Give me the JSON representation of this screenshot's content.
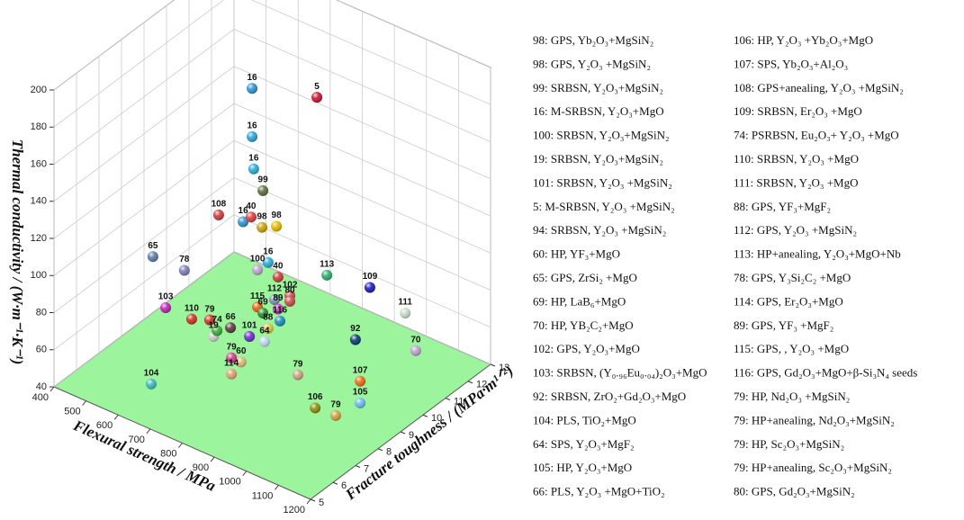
{
  "chart_data": {
    "type": "scatter3d",
    "xlabel": "Flexural strength / MPa",
    "ylabel": "Fracture toughness / (MPa·m¹ᐟ²)",
    "zlabel": "Thermal conductivity / (W·m⁻¹·K⁻¹)",
    "xlim": [
      400,
      1200
    ],
    "xticks": [
      400,
      500,
      600,
      700,
      800,
      900,
      1000,
      1100,
      1200
    ],
    "ylim": [
      5,
      13
    ],
    "yticks": [
      5,
      6,
      7,
      8,
      9,
      10,
      11,
      12,
      13
    ],
    "zlim": [
      40,
      200
    ],
    "zticks": [
      40,
      60,
      80,
      100,
      120,
      140,
      160,
      180,
      200
    ],
    "grid": true,
    "floor_color": "#9cf59c",
    "points": {
      "labels": [
        "16",
        "5",
        "16",
        "16",
        "99",
        "108",
        "40",
        "16",
        "98",
        "98",
        "65",
        "78",
        "100",
        "16",
        "40",
        "113",
        "109",
        "112",
        "102",
        "80",
        "115",
        "69",
        "89",
        "103",
        "110",
        "79",
        "66",
        "74",
        "116",
        "19",
        "101",
        "88",
        "64",
        "79",
        "60",
        "114",
        "92",
        "111",
        "70",
        "104",
        "79",
        "107",
        "106",
        "79",
        "105"
      ],
      "x": [
        737,
        883,
        737,
        742,
        827,
        745,
        790,
        709,
        824,
        869,
        540,
        638,
        810,
        787,
        874,
        858,
        936,
        863,
        883,
        883,
        810,
        827,
        846,
        636,
        717,
        745,
        782,
        768,
        852,
        757,
        813,
        843,
        832,
        785,
        815,
        813,
        947,
        990,
        1051,
        647,
        936,
        1046,
        1018,
        1054,
        1074
      ],
      "y": [
        9,
        9.8,
        9,
        9,
        8.2,
        7.4,
        8.2,
        9,
        8.2,
        8.2,
        7.4,
        7.4,
        8.2,
        9,
        8.2,
        10.6,
        11.4,
        8.2,
        8.6,
        8.6,
        8.2,
        8.2,
        8.6,
        6.6,
        6.6,
        7,
        7.4,
        7,
        8.6,
        7,
        7.8,
        8.2,
        8.2,
        7.4,
        7.4,
        7,
        10.6,
        12.2,
        11.8,
        5.8,
        8.2,
        9.4,
        7.8,
        8.2,
        9
      ],
      "z": [
        190,
        189,
        164,
        147,
        149,
        137,
        132,
        116,
        129,
        133,
        99,
        99,
        105,
        100,
        106,
        84,
        76,
        93,
        93,
        90,
        85,
        83,
        83,
        86,
        86,
        84,
        79,
        80,
        77,
        76,
        73,
        76,
        68,
        63,
        63,
        60,
        56,
        59,
        47,
        53,
        58,
        52,
        50,
        45,
        46
      ],
      "colors": [
        "#2b8fd1",
        "#c8102e",
        "#2b9fd6",
        "#2aa8d8",
        "#5a6e3a",
        "#c83a3a",
        "#d83a3a",
        "#2a90c8",
        "#c8a000",
        "#e0b800",
        "#5a7aa8",
        "#7a7ab8",
        "#b8a0c8",
        "#2aa8d8",
        "#c83a3a",
        "#2aaa6a",
        "#1a1ab8",
        "#7890a8",
        "#c84848",
        "#c84848",
        "#e06010",
        "#2a8a2a",
        "#c83ab8",
        "#b820b8",
        "#c83020",
        "#c83020",
        "#5a3a3a",
        "#3aa83a",
        "#1a8ab8",
        "#c8c8c8",
        "#6a2ac8",
        "#d8c840",
        "#b8d8e8",
        "#c83a8a",
        "#d8b870",
        "#d8a070",
        "#0a3a6a",
        "#c8d8c8",
        "#b8a0c8",
        "#3ab8b8",
        "#c8a080",
        "#e86a10",
        "#8a8a10",
        "#c8a040",
        "#6ab8e8"
      ]
    },
    "legend": [
      "98: GPS, Yb₂O₃+MgSiN₂",
      "98: GPS, Y₂O₃ +MgSiN₂",
      "99: SRBSN, Y₂O₃+MgSiN₂",
      "16: M-SRBSN, Y₂O₃+MgO",
      "100: SRBSN, Y₂O₃+MgSiN₂",
      "19: SRBSN, Y₂O₃+MgSiN₂",
      "101: SRBSN, Y₂O₃ +MgSiN₂",
      "5: M-SRBSN, Y₂O₃ +MgSiN₂",
      "94: SRBSN, Y₂O₃ +MgSiN₂",
      "60: HP, YF₃+MgO",
      "65: GPS, ZrSi₂ +MgO",
      "69: HP, LaB₆+MgO",
      "70: HP, YB₂C₂+MgO",
      "102: GPS, Y₂O₃+MgO",
      "103: SRBSN, (Y₀.₉₆Eu₀.₀₄)₂O₃+MgO",
      "92: SRBSN, ZrO₂+Gd₂O₃+MgO",
      "104: PLS, TiO₂+MgO",
      "64: SPS, Y₂O₃+MgF₂",
      "105: HP, Y₂O₃+MgO",
      "66: PLS, Y₂O₃ +MgO+TiO₂",
      "106: HP, Y₂O₃ +Yb₂O₃+MgO",
      "107: SPS, Yb₂O₃+Al₂O₃",
      "108: GPS+anealing, Y₂O₃ +MgSiN₂",
      "109: SRBSN, Er₂O₃ +MgO",
      "74: PSRBSN, Eu₂O₃+ Y₂O₃ +MgO",
      "110: SRBSN, Y₂O₃ +MgO",
      "111: SRBSN, Y₂O₃ +MgO",
      "88: GPS, YF₃+MgF₂",
      "112: GPS, Y₂O₃ +MgSiN₂",
      "113: HP+anealing, Y₂O₃+MgO+Nb",
      "78: GPS, Y₃Si₂C₂ +MgO",
      "114: GPS, Er₂O₃+MgO",
      "89: GPS, YF₃ +MgF₂",
      "115: GPS, , Y₂O₃ +MgO",
      "116: GPS, Gd₂O₃+MgO+β-Si₃N₄ seeds",
      "79: HP, Nd₂O₃ +MgSiN₂",
      "79: HP+anealing, Nd₂O₃+MgSiN₂",
      "79: HP, Sc₂O₃+MgSiN₂",
      "79: HP+anealing, Sc₂O₃+MgSiN₂",
      "80: GPS, Gd₂O₃+MgSiN₂"
    ]
  }
}
